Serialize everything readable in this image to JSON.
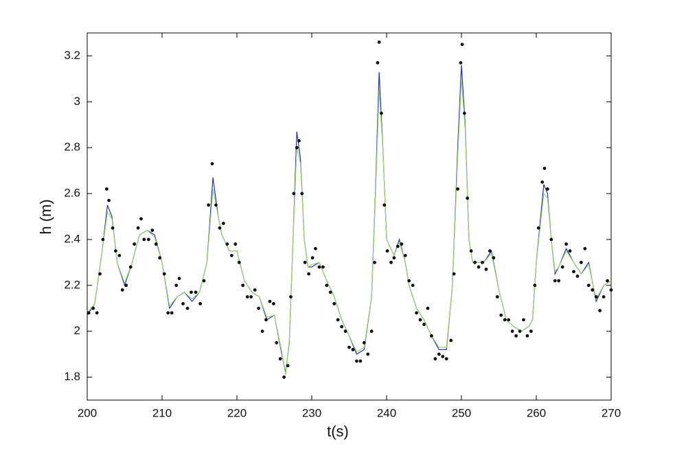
{
  "chart_data": {
    "type": "line",
    "xlabel": "t(s)",
    "ylabel": "h (m)",
    "xlim": [
      200,
      270
    ],
    "xticks": [
      200,
      210,
      220,
      230,
      240,
      250,
      260,
      270
    ],
    "ylim": [
      1.7,
      3.3
    ],
    "yticks": [
      1.8,
      2,
      2.2,
      2.4,
      2.6,
      2.8,
      3,
      3.2
    ],
    "grid": false,
    "series": [
      {
        "style": "line",
        "color": "#1f2fd0",
        "x": [
          200,
          201,
          202,
          202.7,
          203.3,
          204,
          205,
          206,
          207,
          208,
          209,
          210,
          211,
          212,
          213,
          214,
          215,
          216,
          216.8,
          217.5,
          218,
          219,
          220,
          221,
          222,
          223,
          224,
          225,
          226,
          226.5,
          227,
          227.5,
          228,
          228.5,
          229,
          229.5,
          230,
          231,
          232,
          233,
          234,
          235,
          236,
          237,
          238,
          238.5,
          239,
          239.5,
          240,
          241,
          241.7,
          242.5,
          243,
          244,
          245,
          246,
          247,
          248,
          248.8,
          249.5,
          250,
          250.5,
          251,
          251.5,
          252,
          253,
          254,
          255,
          256,
          257,
          258,
          259,
          259.5,
          260,
          261,
          261.5,
          262,
          262.5,
          263,
          264,
          265,
          266,
          267,
          268,
          269,
          270
        ],
        "values": [
          2.07,
          2.12,
          2.35,
          2.55,
          2.5,
          2.3,
          2.2,
          2.3,
          2.42,
          2.44,
          2.42,
          2.3,
          2.1,
          2.15,
          2.17,
          2.13,
          2.17,
          2.3,
          2.67,
          2.5,
          2.42,
          2.35,
          2.35,
          2.22,
          2.17,
          2.15,
          2.05,
          2.07,
          1.9,
          1.82,
          1.95,
          2.4,
          2.87,
          2.75,
          2.4,
          2.28,
          2.28,
          2.3,
          2.22,
          2.15,
          2.05,
          1.98,
          1.9,
          1.92,
          2.15,
          2.6,
          3.13,
          2.8,
          2.4,
          2.33,
          2.4,
          2.3,
          2.2,
          2.1,
          2.05,
          1.98,
          1.92,
          1.92,
          2.2,
          2.8,
          3.16,
          2.9,
          2.4,
          2.3,
          2.3,
          2.3,
          2.35,
          2.18,
          2.05,
          2.02,
          2.0,
          2.02,
          2.05,
          2.3,
          2.64,
          2.6,
          2.4,
          2.25,
          2.28,
          2.36,
          2.3,
          2.25,
          2.3,
          2.13,
          2.2,
          2.22
        ]
      },
      {
        "style": "line",
        "color": "#9ad56a",
        "x": [
          200,
          201,
          202,
          202.7,
          203.3,
          204,
          205,
          206,
          207,
          208,
          209,
          210,
          211,
          212,
          213,
          214,
          215,
          216,
          216.8,
          217.5,
          218,
          219,
          220,
          221,
          222,
          223,
          224,
          225,
          226,
          226.5,
          227,
          227.5,
          228,
          228.5,
          229,
          229.5,
          230,
          231,
          232,
          233,
          234,
          235,
          236,
          237,
          238,
          238.5,
          239,
          239.5,
          240,
          241,
          241.7,
          242.5,
          243,
          244,
          245,
          246,
          247,
          248,
          248.8,
          249.5,
          250,
          250.5,
          251,
          251.5,
          252,
          253,
          254,
          255,
          256,
          257,
          258,
          259,
          259.5,
          260,
          261,
          261.5,
          262,
          262.5,
          263,
          264,
          265,
          266,
          267,
          268,
          269,
          270
        ],
        "values": [
          2.08,
          2.12,
          2.35,
          2.52,
          2.49,
          2.3,
          2.21,
          2.3,
          2.42,
          2.44,
          2.41,
          2.3,
          2.11,
          2.15,
          2.17,
          2.14,
          2.17,
          2.3,
          2.62,
          2.5,
          2.42,
          2.35,
          2.35,
          2.22,
          2.17,
          2.15,
          2.06,
          2.07,
          1.91,
          1.81,
          1.96,
          2.4,
          2.8,
          2.73,
          2.4,
          2.28,
          2.29,
          2.3,
          2.22,
          2.15,
          2.05,
          1.98,
          1.91,
          1.93,
          2.15,
          2.58,
          3.05,
          2.8,
          2.4,
          2.33,
          2.39,
          2.3,
          2.2,
          2.1,
          2.05,
          1.98,
          1.93,
          1.93,
          2.2,
          2.76,
          3.1,
          2.88,
          2.4,
          2.3,
          2.3,
          2.3,
          2.34,
          2.18,
          2.05,
          2.02,
          2.0,
          2.02,
          2.05,
          2.3,
          2.6,
          2.58,
          2.4,
          2.26,
          2.28,
          2.35,
          2.3,
          2.25,
          2.29,
          2.14,
          2.2,
          2.22
        ]
      },
      {
        "style": "markers",
        "color": "#111111",
        "x": [
          200.2,
          200.8,
          201.3,
          201.7,
          202.1,
          202.6,
          202.9,
          203.4,
          203.8,
          204.3,
          204.7,
          205.2,
          205.8,
          206.3,
          206.8,
          207.2,
          207.6,
          208.2,
          208.7,
          209.2,
          209.7,
          210.3,
          210.8,
          211.3,
          211.9,
          212.3,
          212.8,
          213.4,
          213.9,
          214.5,
          215.1,
          215.6,
          216.2,
          216.7,
          217.2,
          217.7,
          218.2,
          218.7,
          219.3,
          219.8,
          220.3,
          220.8,
          221.4,
          221.9,
          222.4,
          222.9,
          223.4,
          223.9,
          224.4,
          224.9,
          225.3,
          225.8,
          226.3,
          226.8,
          227.2,
          227.6,
          228.0,
          228.3,
          228.7,
          229.1,
          229.6,
          230.1,
          230.5,
          231.0,
          231.5,
          232.0,
          232.5,
          233.0,
          233.5,
          234.0,
          234.5,
          235.0,
          235.5,
          236.0,
          236.5,
          237.0,
          237.5,
          238.0,
          238.4,
          238.8,
          239.0,
          239.3,
          239.7,
          240.1,
          240.6,
          241.0,
          241.5,
          242.0,
          242.5,
          243.0,
          243.5,
          244.0,
          244.5,
          245.0,
          245.5,
          246.0,
          246.5,
          247.0,
          247.5,
          248.0,
          248.6,
          249.0,
          249.5,
          249.9,
          250.1,
          250.4,
          250.8,
          251.3,
          251.8,
          252.3,
          252.8,
          253.3,
          253.8,
          254.3,
          254.8,
          255.3,
          255.8,
          256.3,
          256.8,
          257.3,
          257.8,
          258.3,
          258.8,
          259.3,
          259.8,
          260.3,
          260.8,
          261.1,
          261.5,
          262.0,
          262.5,
          263.0,
          263.5,
          264.0,
          264.5,
          265.0,
          265.5,
          266.0,
          266.5,
          267.0,
          267.5,
          268.0,
          268.5,
          269.0,
          269.5,
          270.0
        ],
        "values": [
          2.08,
          2.1,
          2.08,
          2.25,
          2.4,
          2.62,
          2.57,
          2.45,
          2.35,
          2.33,
          2.18,
          2.2,
          2.28,
          2.38,
          2.45,
          2.49,
          2.4,
          2.4,
          2.44,
          2.38,
          2.32,
          2.25,
          2.08,
          2.08,
          2.2,
          2.23,
          2.12,
          2.1,
          2.17,
          2.17,
          2.12,
          2.22,
          2.55,
          2.73,
          2.55,
          2.45,
          2.47,
          2.38,
          2.33,
          2.38,
          2.3,
          2.2,
          2.15,
          2.15,
          2.18,
          2.1,
          2.0,
          2.05,
          2.13,
          2.12,
          1.95,
          1.88,
          1.8,
          1.85,
          2.15,
          2.6,
          2.8,
          2.83,
          2.6,
          2.3,
          2.25,
          2.32,
          2.36,
          2.28,
          2.28,
          2.2,
          2.17,
          2.12,
          2.05,
          2.02,
          2.0,
          1.93,
          1.92,
          1.87,
          1.87,
          1.95,
          1.9,
          2.0,
          2.3,
          3.17,
          3.26,
          2.95,
          2.55,
          2.35,
          2.3,
          2.32,
          2.37,
          2.38,
          2.33,
          2.22,
          2.2,
          2.08,
          2.05,
          2.03,
          2.1,
          1.98,
          1.88,
          1.9,
          1.89,
          1.88,
          1.96,
          2.25,
          2.62,
          3.17,
          3.25,
          2.95,
          2.58,
          2.35,
          2.3,
          2.28,
          2.3,
          2.27,
          2.35,
          2.32,
          2.15,
          2.07,
          2.05,
          2.05,
          2.0,
          1.98,
          2.0,
          2.05,
          1.98,
          2.0,
          2.2,
          2.45,
          2.65,
          2.71,
          2.62,
          2.4,
          2.22,
          2.22,
          2.28,
          2.38,
          2.35,
          2.26,
          2.24,
          2.3,
          2.36,
          2.2,
          2.18,
          2.15,
          2.09,
          2.15,
          2.22,
          2.18
        ]
      }
    ]
  }
}
